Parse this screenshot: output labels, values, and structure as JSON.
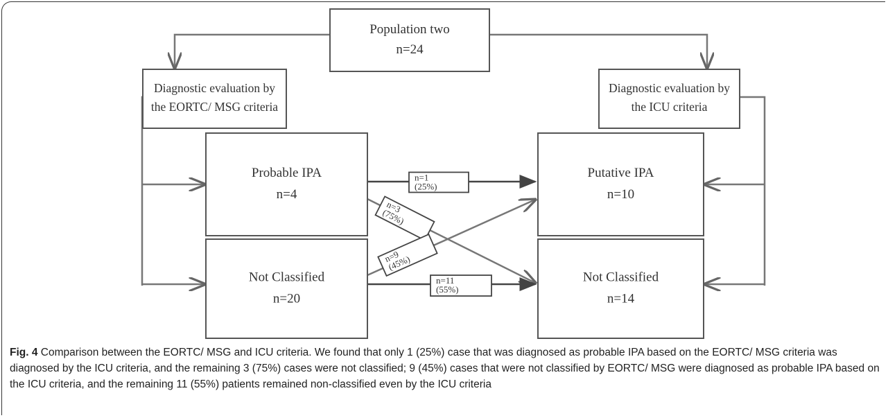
{
  "nodes": [
    {
      "lines": [
        "Population two",
        "n=24"
      ]
    },
    {
      "lines": [
        "Diagnostic evaluation by",
        "the EORTC/ MSG criteria"
      ]
    },
    {
      "lines": [
        "Diagnostic evaluation by",
        "the ICU criteria"
      ]
    },
    {
      "lines": [
        "Probable IPA",
        "n=4"
      ]
    },
    {
      "lines": [
        "Not Classified",
        "n=20"
      ]
    },
    {
      "lines": [
        "Putative IPA",
        "n=10"
      ]
    },
    {
      "lines": [
        "Not Classified",
        "n=14"
      ]
    }
  ],
  "edges": [
    {
      "lines": [
        "n=1",
        "(25%)"
      ]
    },
    {
      "lines": [
        "n=3",
        "(75%)"
      ]
    },
    {
      "lines": [
        "n=9",
        "(45%)"
      ]
    },
    {
      "lines": [
        "n=11",
        "(55%)"
      ]
    }
  ],
  "caption": {
    "label": "Fig. 4",
    "text": " Comparison between the EORTC/ MSG and ICU criteria. We found that only 1 (25%) case that was diagnosed as probable IPA based on the EORTC/ MSG criteria was diagnosed by the ICU criteria, and the remaining 3 (75%) cases were not classified; 9 (45%) cases that were not classified by EORTC/ MSG were diagnosed as probable IPA based on the ICU criteria, and the remaining 11 (55%) patients remained non-classified even by the ICU criteria"
  }
}
